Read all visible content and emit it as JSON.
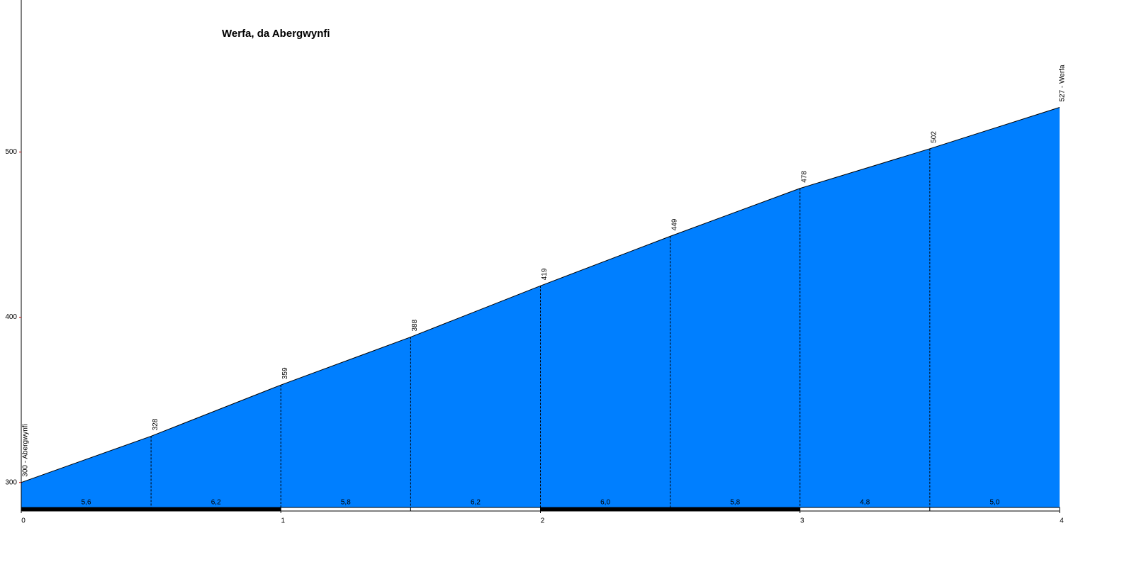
{
  "chart_data": {
    "type": "area",
    "title": "Werfa, da Abergwynfi",
    "x": [
      0,
      0.5,
      1,
      1.5,
      2,
      2.5,
      3,
      3.5,
      4
    ],
    "values": [
      300,
      328,
      359,
      388,
      419,
      449,
      478,
      502,
      527
    ],
    "value_labels": [
      "300 - Abergwynfi",
      "328",
      "359",
      "388",
      "419",
      "449",
      "478",
      "502",
      "527 - Werfa"
    ],
    "segment_gradients": [
      5.6,
      6.2,
      5.8,
      6.2,
      6.0,
      5.8,
      4.8,
      5.0
    ],
    "segment_gradient_labels": [
      "5,6",
      "6,2",
      "5,8",
      "6,2",
      "6,0",
      "5,8",
      "4,8",
      "5,0"
    ],
    "color": "#007fff",
    "xlim": [
      0,
      4
    ],
    "xticks": [
      0,
      1,
      2,
      3,
      4
    ],
    "ylim": [
      284,
      592
    ],
    "yticks": [
      300,
      400,
      500
    ]
  }
}
